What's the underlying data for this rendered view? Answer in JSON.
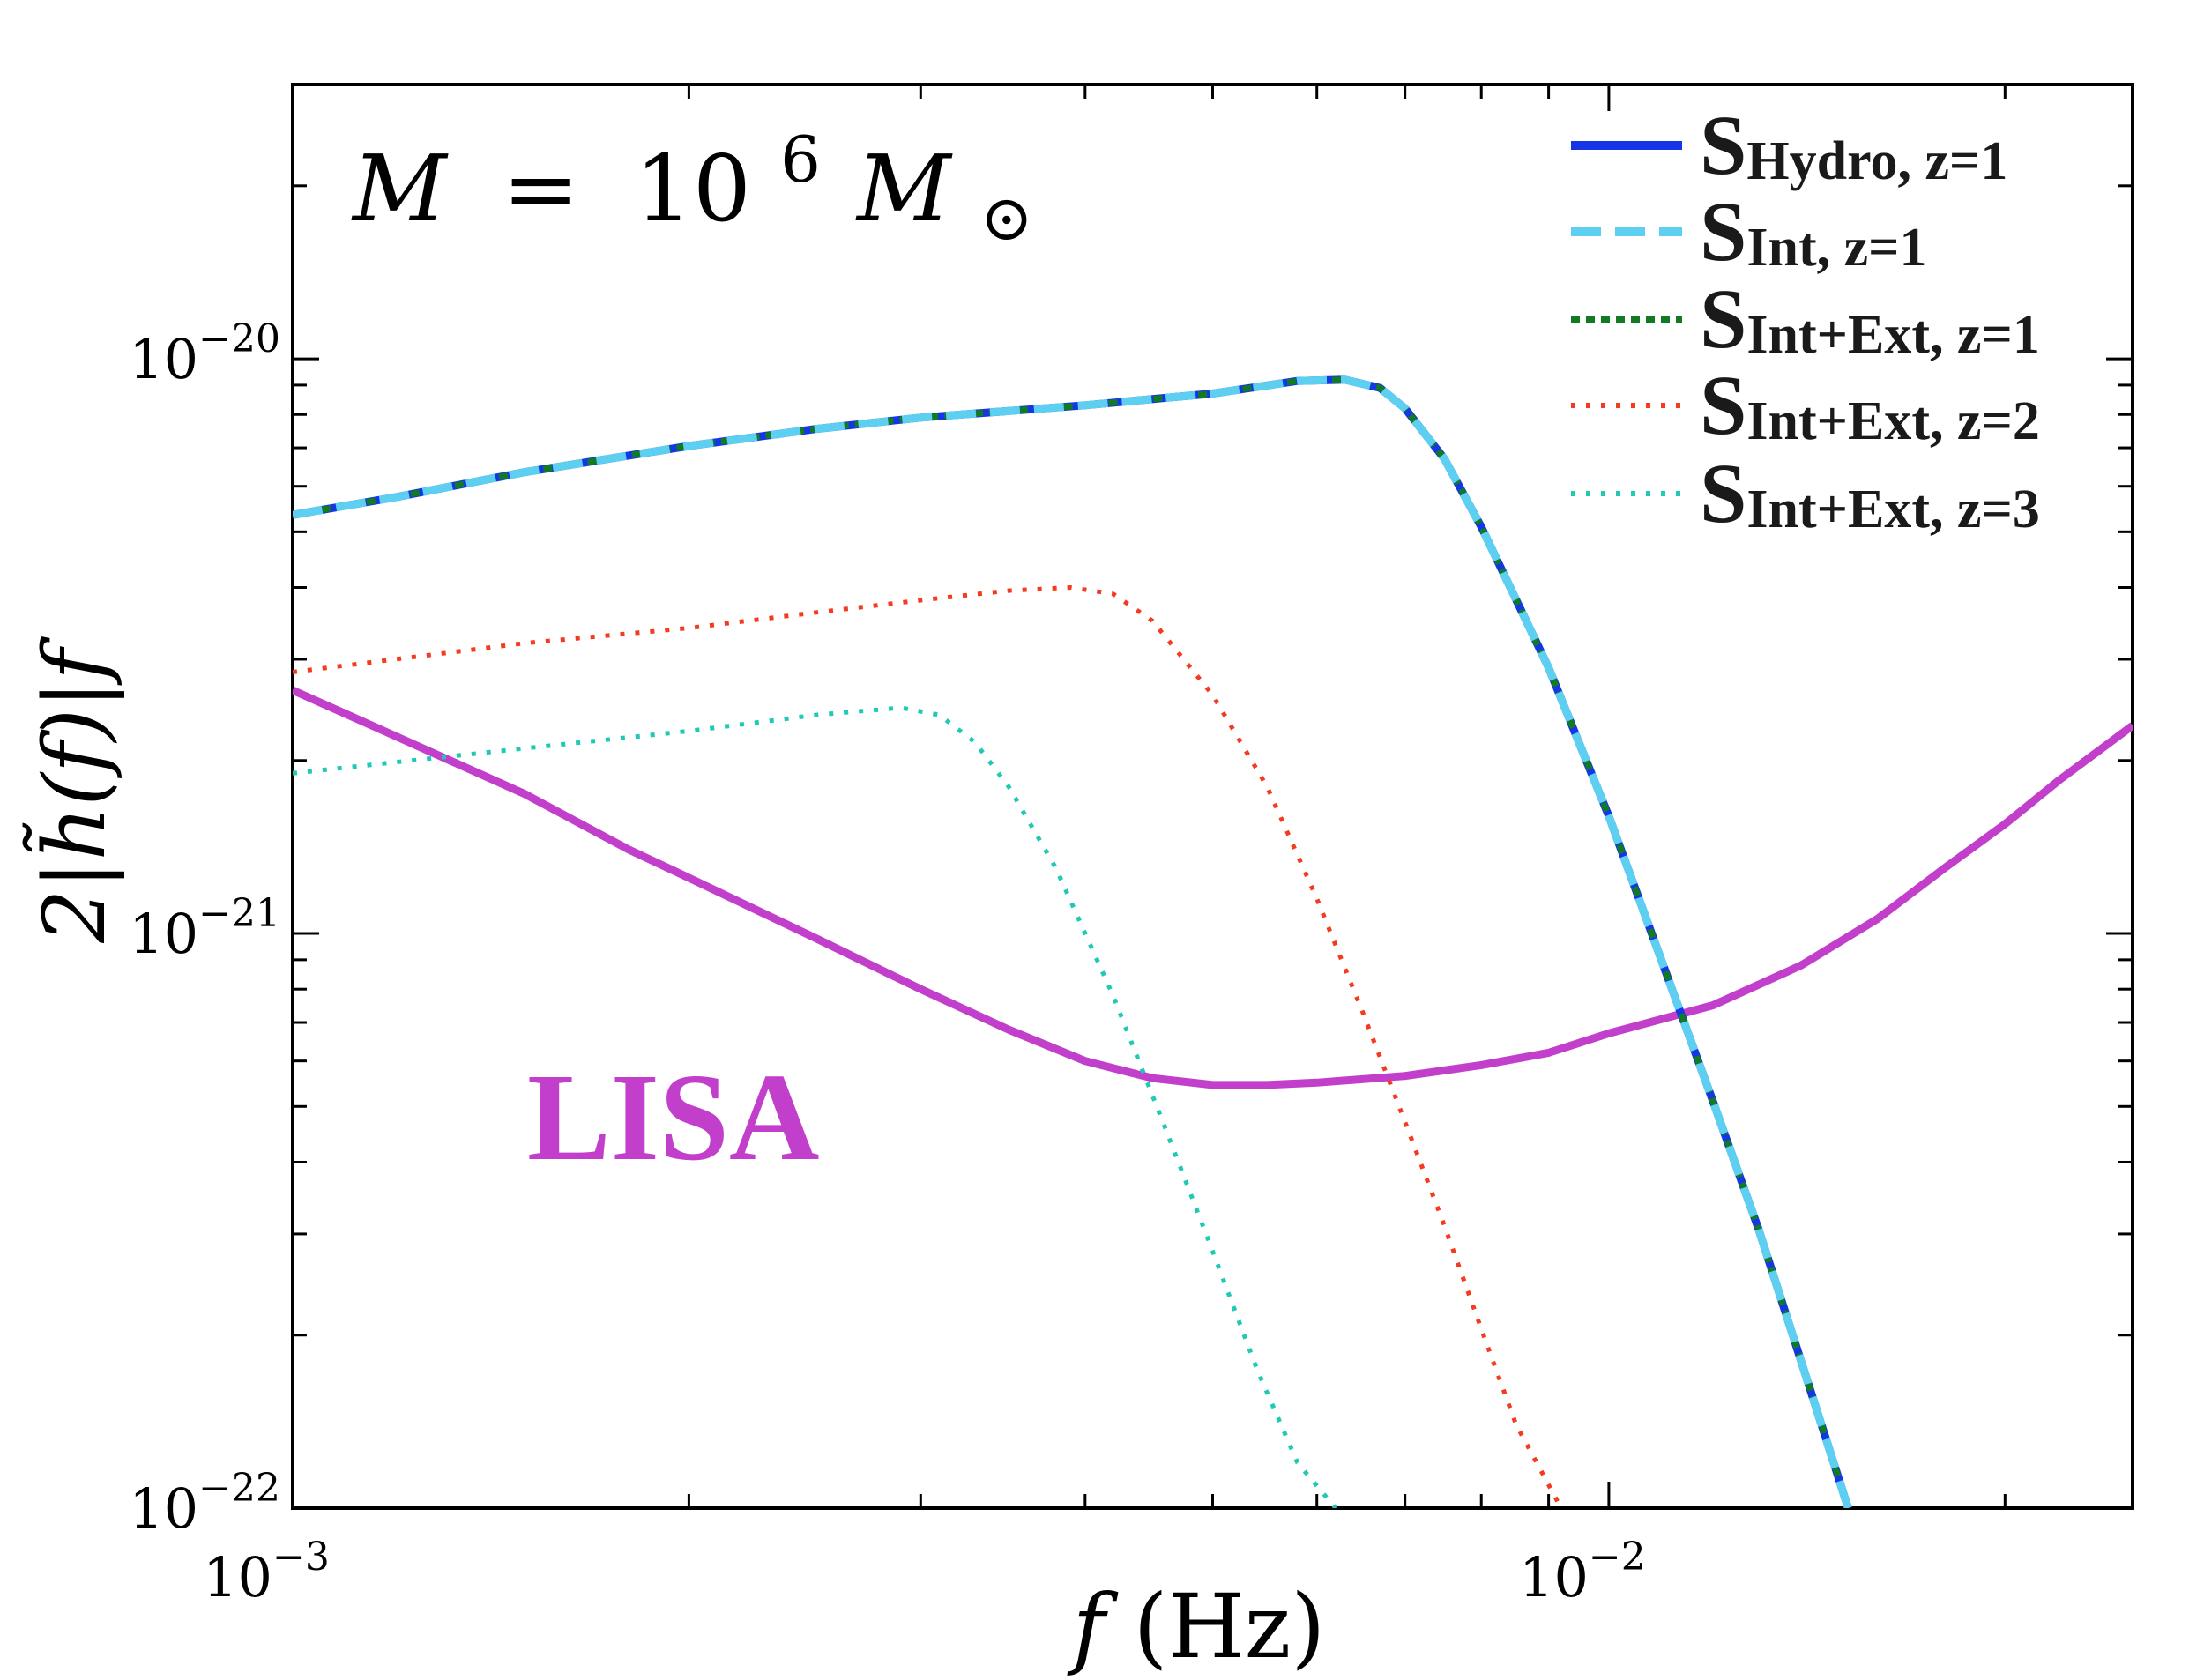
{
  "chart_data": {
    "type": "line",
    "annotation": {
      "mass_label": {
        "lhs": "M",
        "eq": "=",
        "base": "10",
        "exp": "6",
        "rhs": "M",
        "sub": "⊙"
      }
    },
    "xlabel": {
      "italic": "f",
      "rest": "(Hz)"
    },
    "ylabel": "2|h̃(f)|f",
    "xscale": "log",
    "yscale": "log",
    "xlim": [
      0.001,
      0.025
    ],
    "ylim": [
      1e-22,
      3e-20
    ],
    "x_ticks": [
      {
        "value": 0.001,
        "base": "10",
        "exp": "−3"
      },
      {
        "value": 0.01,
        "base": "10",
        "exp": "−2"
      }
    ],
    "y_ticks": [
      {
        "value": 1e-22,
        "base": "10",
        "exp": "−22"
      },
      {
        "value": 1e-21,
        "base": "10",
        "exp": "−21"
      },
      {
        "value": 1e-20,
        "base": "10",
        "exp": "−20"
      }
    ],
    "legend_position": "top-right",
    "series": [
      {
        "name": "S",
        "sub": "Hydro, z=1",
        "color": "#1536e6",
        "dash": "solid",
        "width": 9,
        "points": [
          [
            0.001,
            5.35e-21
          ],
          [
            0.0012,
            5.75e-21
          ],
          [
            0.0015,
            6.35e-21
          ],
          [
            0.002,
            7.05e-21
          ],
          [
            0.0025,
            7.55e-21
          ],
          [
            0.003,
            7.9e-21
          ],
          [
            0.004,
            8.3e-21
          ],
          [
            0.005,
            8.7e-21
          ],
          [
            0.0058,
            9.15e-21
          ],
          [
            0.0063,
            9.2e-21
          ],
          [
            0.0067,
            8.9e-21
          ],
          [
            0.007,
            8.2e-21
          ],
          [
            0.0075,
            6.7e-21
          ],
          [
            0.008,
            5.1e-21
          ],
          [
            0.009,
            2.9e-21
          ],
          [
            0.01,
            1.6e-21
          ],
          [
            0.011,
            8.8e-22
          ],
          [
            0.012,
            5.1e-22
          ],
          [
            0.013,
            3.05e-22
          ],
          [
            0.014,
            1.8e-22
          ],
          [
            0.0152,
            1e-22
          ]
        ]
      },
      {
        "name": "S",
        "sub": "Int, z=1",
        "color": "#5dcff0",
        "dash": "dashed",
        "width": 9,
        "points": [
          [
            0.001,
            5.35e-21
          ],
          [
            0.0012,
            5.75e-21
          ],
          [
            0.0015,
            6.35e-21
          ],
          [
            0.002,
            7.05e-21
          ],
          [
            0.0025,
            7.55e-21
          ],
          [
            0.003,
            7.9e-21
          ],
          [
            0.004,
            8.3e-21
          ],
          [
            0.005,
            8.7e-21
          ],
          [
            0.0058,
            9.15e-21
          ],
          [
            0.0063,
            9.2e-21
          ],
          [
            0.0067,
            8.9e-21
          ],
          [
            0.007,
            8.2e-21
          ],
          [
            0.0075,
            6.7e-21
          ],
          [
            0.008,
            5.1e-21
          ],
          [
            0.009,
            2.9e-21
          ],
          [
            0.01,
            1.6e-21
          ],
          [
            0.011,
            8.8e-22
          ],
          [
            0.012,
            5.1e-22
          ],
          [
            0.013,
            3.05e-22
          ],
          [
            0.014,
            1.8e-22
          ],
          [
            0.0152,
            1e-22
          ]
        ]
      },
      {
        "name": "S",
        "sub": "Int+Ext, z=1",
        "color": "#117a23",
        "dash": "dense-dot",
        "width": 7,
        "points": [
          [
            0.001,
            5.35e-21
          ],
          [
            0.0012,
            5.75e-21
          ],
          [
            0.0015,
            6.35e-21
          ],
          [
            0.002,
            7.05e-21
          ],
          [
            0.0025,
            7.55e-21
          ],
          [
            0.003,
            7.9e-21
          ],
          [
            0.004,
            8.3e-21
          ],
          [
            0.005,
            8.7e-21
          ],
          [
            0.0058,
            9.15e-21
          ],
          [
            0.0063,
            9.2e-21
          ],
          [
            0.0067,
            8.9e-21
          ],
          [
            0.007,
            8.2e-21
          ],
          [
            0.0075,
            6.7e-21
          ],
          [
            0.008,
            5.1e-21
          ],
          [
            0.009,
            2.9e-21
          ],
          [
            0.01,
            1.6e-21
          ],
          [
            0.011,
            8.8e-22
          ],
          [
            0.012,
            5.1e-22
          ],
          [
            0.013,
            3.05e-22
          ],
          [
            0.014,
            1.8e-22
          ],
          [
            0.0152,
            1e-22
          ]
        ]
      },
      {
        "name": "S",
        "sub": "Int+Ext, z=2",
        "color": "#f53a1f",
        "dash": "dotted",
        "width": 5,
        "points": [
          [
            0.001,
            2.85e-21
          ],
          [
            0.0015,
            3.2e-21
          ],
          [
            0.002,
            3.4e-21
          ],
          [
            0.0025,
            3.62e-21
          ],
          [
            0.003,
            3.8e-21
          ],
          [
            0.0035,
            3.95e-21
          ],
          [
            0.0039,
            4e-21
          ],
          [
            0.0042,
            3.9e-21
          ],
          [
            0.0045,
            3.5e-21
          ],
          [
            0.005,
            2.6e-21
          ],
          [
            0.0055,
            1.8e-21
          ],
          [
            0.006,
            1.15e-21
          ],
          [
            0.0065,
            7.3e-22
          ],
          [
            0.007,
            4.7e-22
          ],
          [
            0.0075,
            3.1e-22
          ],
          [
            0.008,
            2.05e-22
          ],
          [
            0.0085,
            1.4e-22
          ],
          [
            0.0092,
            1e-22
          ]
        ]
      },
      {
        "name": "S",
        "sub": "Int+Ext, z=3",
        "color": "#1fc9b6",
        "dash": "dotted",
        "width": 5,
        "points": [
          [
            0.001,
            1.9e-21
          ],
          [
            0.0015,
            2.1e-21
          ],
          [
            0.002,
            2.25e-21
          ],
          [
            0.0025,
            2.4e-21
          ],
          [
            0.0029,
            2.47e-21
          ],
          [
            0.0031,
            2.4e-21
          ],
          [
            0.0033,
            2.15e-21
          ],
          [
            0.0035,
            1.8e-21
          ],
          [
            0.0038,
            1.3e-21
          ],
          [
            0.0042,
            7.8e-22
          ],
          [
            0.0046,
            4.6e-22
          ],
          [
            0.005,
            2.8e-22
          ],
          [
            0.0054,
            1.75e-22
          ],
          [
            0.0058,
            1.2e-22
          ],
          [
            0.0062,
            1e-22
          ]
        ]
      }
    ],
    "sensitivity_curve": {
      "name": "LISA",
      "color": "#c13fcb",
      "width": 9,
      "points": [
        [
          0.001,
          2.65e-21
        ],
        [
          0.0012,
          2.2e-21
        ],
        [
          0.0015,
          1.75e-21
        ],
        [
          0.0018,
          1.4e-21
        ],
        [
          0.002,
          1.25e-21
        ],
        [
          0.0025,
          9.8e-22
        ],
        [
          0.003,
          8e-22
        ],
        [
          0.0035,
          6.8e-22
        ],
        [
          0.004,
          6e-22
        ],
        [
          0.0045,
          5.6e-22
        ],
        [
          0.005,
          5.45e-22
        ],
        [
          0.0055,
          5.45e-22
        ],
        [
          0.006,
          5.5e-22
        ],
        [
          0.007,
          5.65e-22
        ],
        [
          0.008,
          5.9e-22
        ],
        [
          0.009,
          6.2e-22
        ],
        [
          0.01,
          6.7e-22
        ],
        [
          0.012,
          7.5e-22
        ],
        [
          0.014,
          8.8e-22
        ],
        [
          0.016,
          1.06e-21
        ],
        [
          0.018,
          1.3e-21
        ],
        [
          0.02,
          1.55e-21
        ],
        [
          0.022,
          1.85e-21
        ],
        [
          0.025,
          2.3e-21
        ]
      ]
    }
  }
}
